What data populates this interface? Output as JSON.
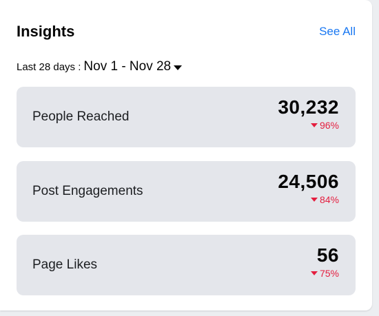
{
  "card": {
    "title": "Insights",
    "see_all_label": "See All"
  },
  "date_range": {
    "label": "Last 28 days :",
    "value": "Nov 1 - Nov 28",
    "icon": "caret-down-icon"
  },
  "metrics": [
    {
      "label": "People Reached",
      "value": "30,232",
      "change": "96%",
      "direction": "down"
    },
    {
      "label": "Post Engagements",
      "value": "24,506",
      "change": "84%",
      "direction": "down"
    },
    {
      "label": "Page Likes",
      "value": "56",
      "change": "75%",
      "direction": "down"
    }
  ],
  "colors": {
    "accent": "#1877f2",
    "negative": "#e41e3f",
    "tile_background": "#e4e6eb"
  }
}
